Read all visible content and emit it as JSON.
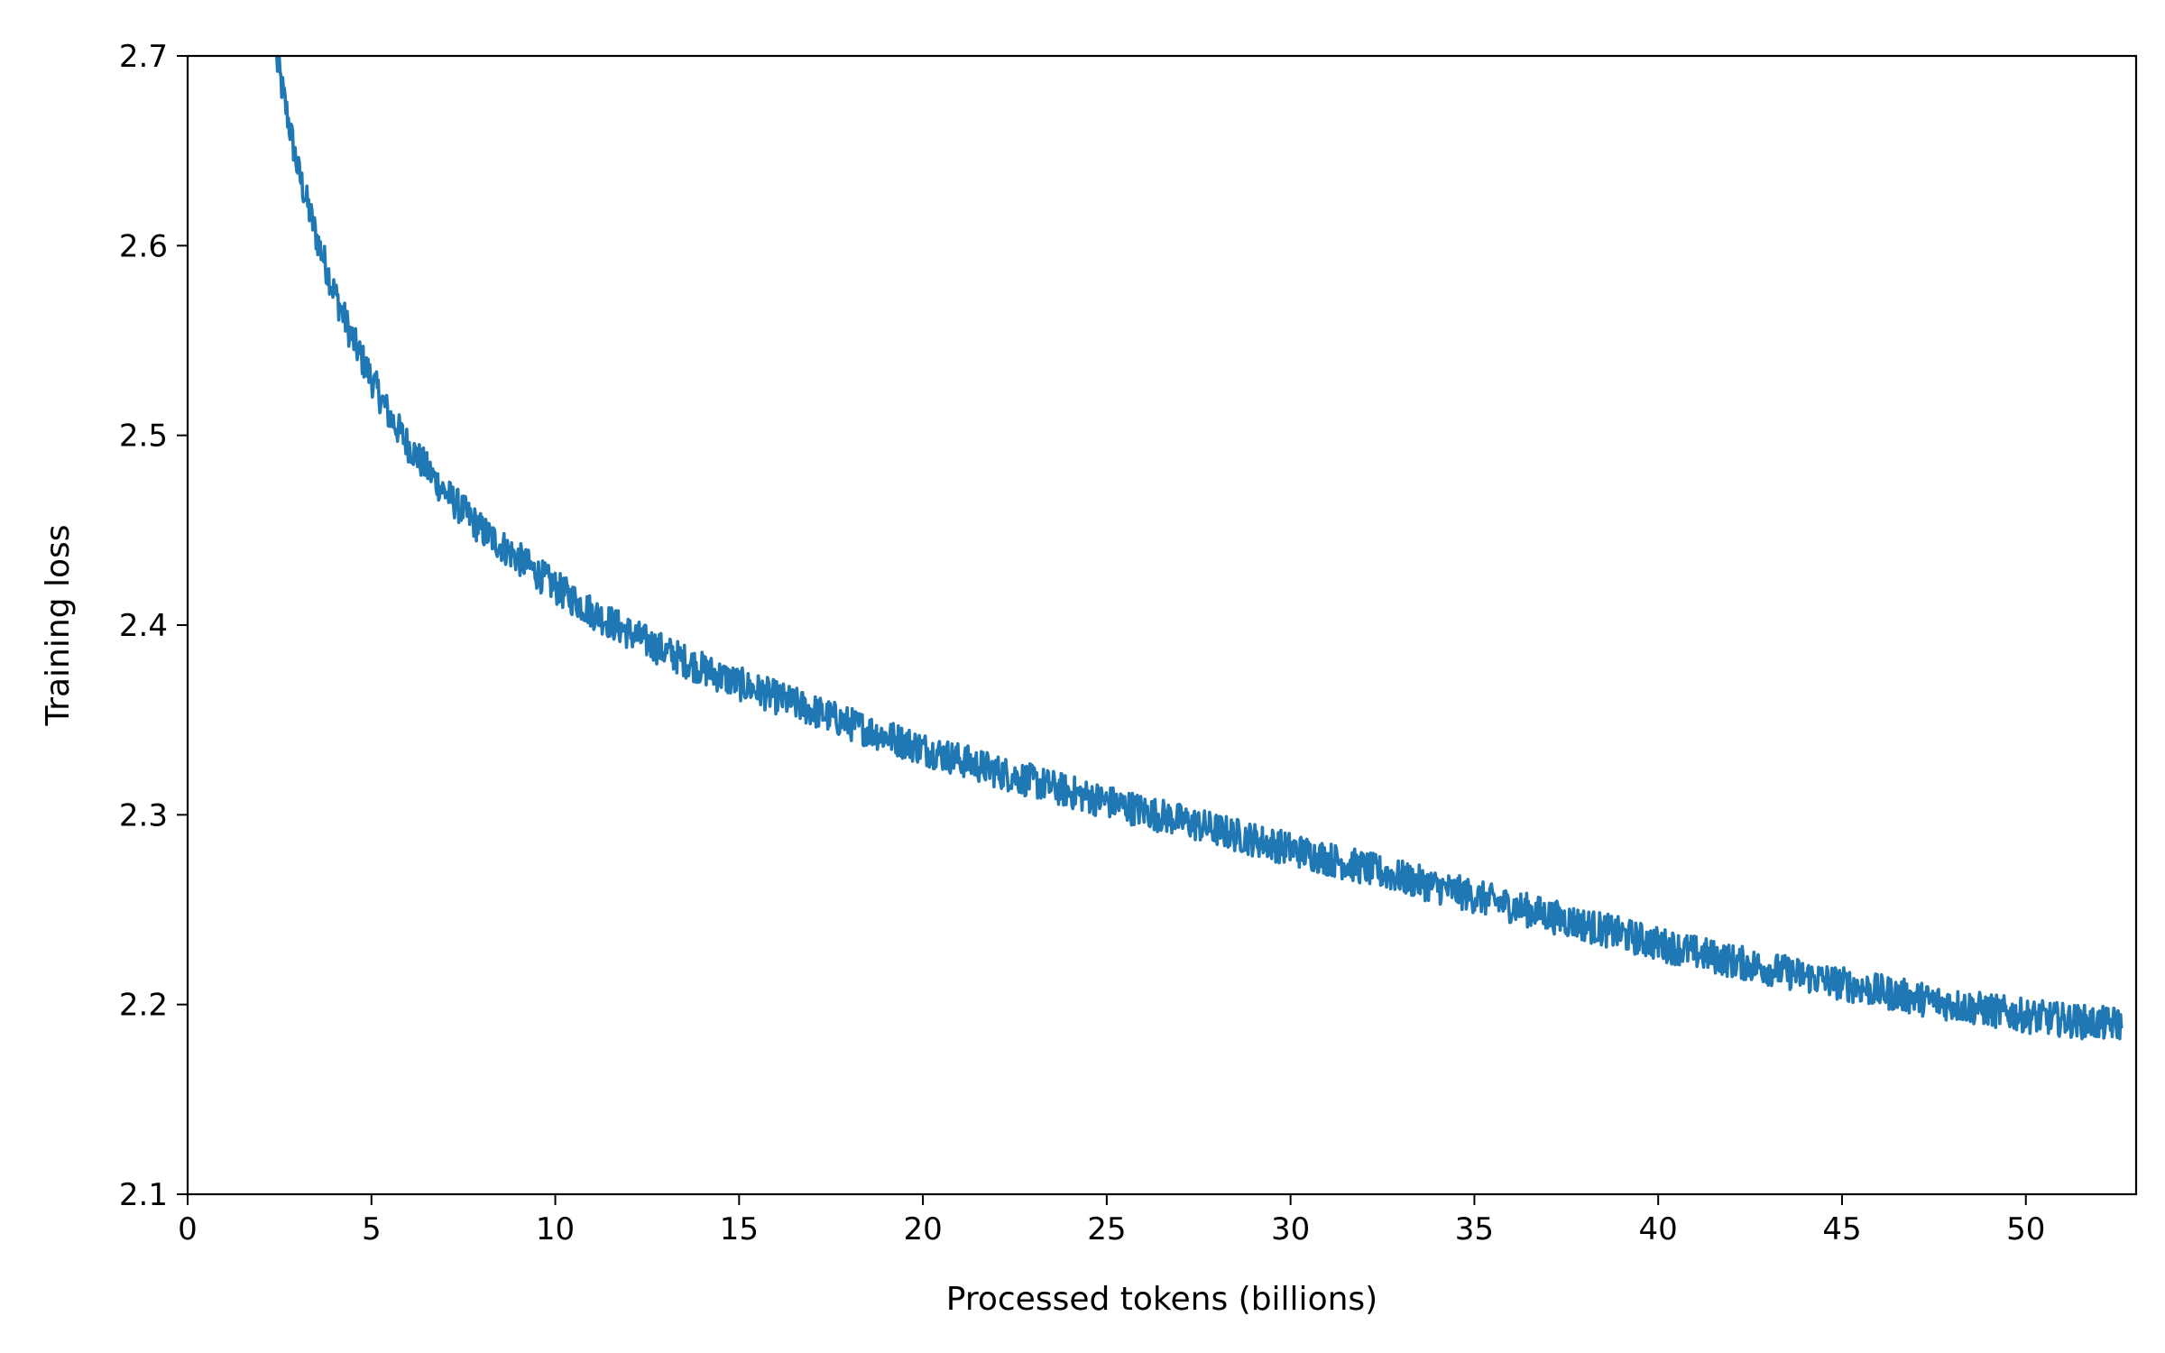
{
  "chart_data": {
    "type": "line",
    "title": "",
    "xlabel": "Processed tokens (billions)",
    "ylabel": "Training loss",
    "xlim": [
      0,
      53
    ],
    "ylim": [
      2.1,
      2.7
    ],
    "x_ticks": [
      0,
      5,
      10,
      15,
      20,
      25,
      30,
      35,
      40,
      45,
      50
    ],
    "x_tick_labels": [
      "0",
      "5",
      "10",
      "15",
      "20",
      "25",
      "30",
      "35",
      "40",
      "45",
      "50"
    ],
    "y_ticks": [
      2.1,
      2.2,
      2.3,
      2.4,
      2.5,
      2.6,
      2.7
    ],
    "y_tick_labels": [
      "2.1",
      "2.2",
      "2.3",
      "2.4",
      "2.5",
      "2.6",
      "2.7"
    ],
    "grid": false,
    "legend": "none",
    "line_color": "#1f77b4",
    "series": [
      {
        "x": [
          2.4,
          2.7,
          3.0,
          3.5,
          4.0,
          4.5,
          5.0,
          5.5,
          6.0,
          7.0,
          8.0,
          9.0,
          10.0,
          11.0,
          12.0,
          13.0,
          14.0,
          15.0,
          16.0,
          17.0,
          18.0,
          20.0,
          22.0,
          24.0,
          26.0,
          28.0,
          30.0,
          32.0,
          34.0,
          36.0,
          38.0,
          40.0,
          42.0,
          44.0,
          46.0,
          48.0,
          50.0,
          51.0,
          52.0,
          52.6
        ],
        "y": [
          2.7,
          2.67,
          2.64,
          2.605,
          2.575,
          2.55,
          2.53,
          2.51,
          2.495,
          2.47,
          2.45,
          2.435,
          2.42,
          2.407,
          2.396,
          2.386,
          2.377,
          2.369,
          2.362,
          2.355,
          2.348,
          2.335,
          2.323,
          2.312,
          2.302,
          2.292,
          2.282,
          2.272,
          2.262,
          2.252,
          2.242,
          2.232,
          2.223,
          2.215,
          2.207,
          2.2,
          2.194,
          2.192,
          2.19,
          2.19
        ]
      }
    ]
  }
}
